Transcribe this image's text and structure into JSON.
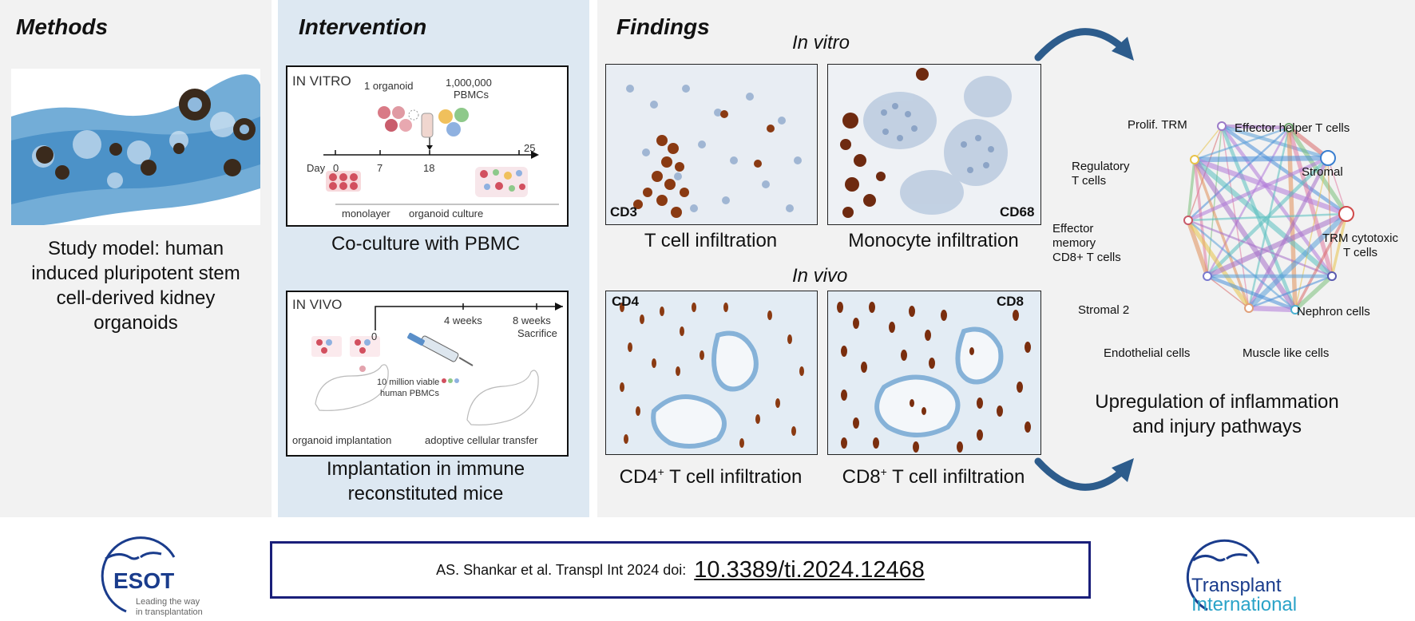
{
  "methods": {
    "title": "Methods",
    "caption_lines": [
      "Study model: human",
      "induced pluripotent stem",
      "cell-derived kidney",
      "organoids"
    ]
  },
  "intervention": {
    "title": "Intervention",
    "in_vitro_diagram": {
      "header": "IN VITRO",
      "organoid_label": "1 organoid",
      "pbmc_count": "1,000,000",
      "pbmc_label": "PBMCs",
      "day_label": "Day",
      "days": [
        "0",
        "7",
        "18",
        "25"
      ],
      "monolayer_label": "monolayer",
      "culture_label": "organoid culture"
    },
    "in_vitro_caption": "Co-culture with PBMC",
    "in_vivo_diagram": {
      "header": "IN VIVO",
      "t0": "0",
      "t1": "4 weeks",
      "t2": "8 weeks",
      "t2_sub": "Sacrifice",
      "pbmc_line1": "10 million viable",
      "pbmc_line2": "human PBMCs",
      "implant_label": "organoid implantation",
      "transfer_label": "adoptive cellular transfer"
    },
    "in_vivo_caption_lines": [
      "Implantation in immune",
      "reconstituted mice"
    ]
  },
  "findings": {
    "title": "Findings",
    "in_vitro_label": "In vitro",
    "in_vivo_label": "In vivo",
    "panels": [
      {
        "stain": "CD3",
        "caption": "T cell infiltration"
      },
      {
        "stain": "CD68",
        "caption": "Monocyte infiltration"
      },
      {
        "stain": "CD4",
        "caption_main": "CD4",
        "caption_sup": "+",
        "caption_rest": " T cell infiltration"
      },
      {
        "stain": "CD8",
        "caption_main": "CD8",
        "caption_sup": "+",
        "caption_rest": " T cell infiltration"
      }
    ],
    "network": {
      "nodes": [
        {
          "label_lines": [
            "Prolif. TRM"
          ]
        },
        {
          "label_lines": [
            "Effector helper T cells"
          ]
        },
        {
          "label_lines": [
            "Regulatory",
            "T cells"
          ]
        },
        {
          "label_lines": [
            "Stromal"
          ]
        },
        {
          "label_lines": [
            "Effector",
            "memory",
            "CD8+ T cells"
          ]
        },
        {
          "label_lines": [
            "TRM cytotoxic",
            "T cells"
          ]
        },
        {
          "label_lines": [
            "Stromal 2"
          ]
        },
        {
          "label_lines": [
            "Nephron cells"
          ]
        },
        {
          "label_lines": [
            "Endothelial cells"
          ]
        },
        {
          "label_lines": [
            "Muscle like cells"
          ]
        }
      ],
      "caption_lines": [
        "Upregulation of inflammation",
        "and injury pathways"
      ]
    }
  },
  "footer": {
    "citation": "AS. Shankar et al. Transpl Int 2024 doi:",
    "doi": "10.3389/ti.2024.12468",
    "left_logo": {
      "name": "ESOT",
      "tagline_lines": [
        "Leading the way",
        "in transplantation"
      ]
    },
    "right_logo": {
      "line1": "Transplant",
      "line2": "International"
    }
  },
  "colors": {
    "dab_brown": "#7a2e12",
    "hematoxylin_blue": "#7fa6d0",
    "navy": "#1a1f7a",
    "arrow_blue": "#2d5c8c"
  }
}
